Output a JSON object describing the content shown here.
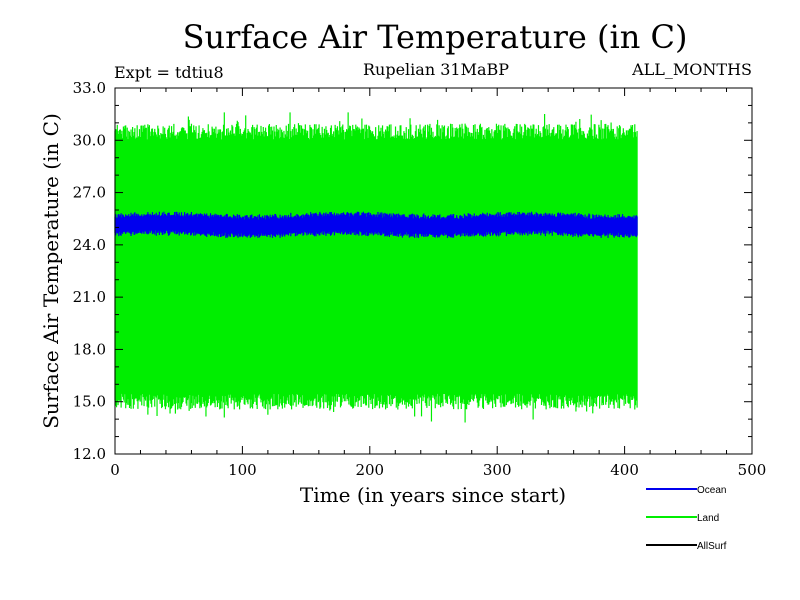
{
  "chart_data": {
    "type": "line",
    "title": "Surface Air Temperature (in C)",
    "experiment_label": "Expt = tdtiu8",
    "subtitle": "Rupelian  31MaBP",
    "period_label": "ALL_MONTHS",
    "xlabel": "Time (in years since start)",
    "ylabel": "Surface Air Temperature (in C)",
    "xlim": [
      0,
      500
    ],
    "ylim": [
      12.0,
      33.0
    ],
    "x_ticks": [
      0,
      100,
      200,
      300,
      400,
      500
    ],
    "x_tick_labels": [
      "0",
      "100",
      "200",
      "300",
      "400",
      "500"
    ],
    "y_ticks": [
      12.0,
      15.0,
      18.0,
      21.0,
      24.0,
      27.0,
      30.0,
      33.0
    ],
    "y_tick_labels": [
      "12.0",
      "15.0",
      "18.0",
      "21.0",
      "24.0",
      "27.0",
      "30.0",
      "33.0"
    ],
    "grid": false,
    "legend_position": "bottom-right, below plot",
    "series": [
      {
        "name": "Land",
        "color": "#00ee00",
        "x_range": [
          0,
          410
        ],
        "typical_min": 15.0,
        "typical_max": 30.5,
        "extreme_min": 13.8,
        "extreme_max": 31.6,
        "note": "monthly values oscillating between seasonal minima and maxima"
      },
      {
        "name": "Ocean",
        "color": "#0000ee",
        "x_range": [
          0,
          410
        ],
        "typical_min": 24.6,
        "typical_max": 25.7,
        "extreme_min": 24.4,
        "extreme_max": 25.9
      },
      {
        "name": "AllSurf",
        "color": "#000000",
        "x_range": [
          0,
          410
        ],
        "values": []
      }
    ],
    "legend": [
      {
        "label": "Ocean",
        "color": "#0000ee"
      },
      {
        "label": "Land",
        "color": "#00ee00"
      },
      {
        "label": "AllSurf",
        "color": "#000000"
      }
    ]
  }
}
